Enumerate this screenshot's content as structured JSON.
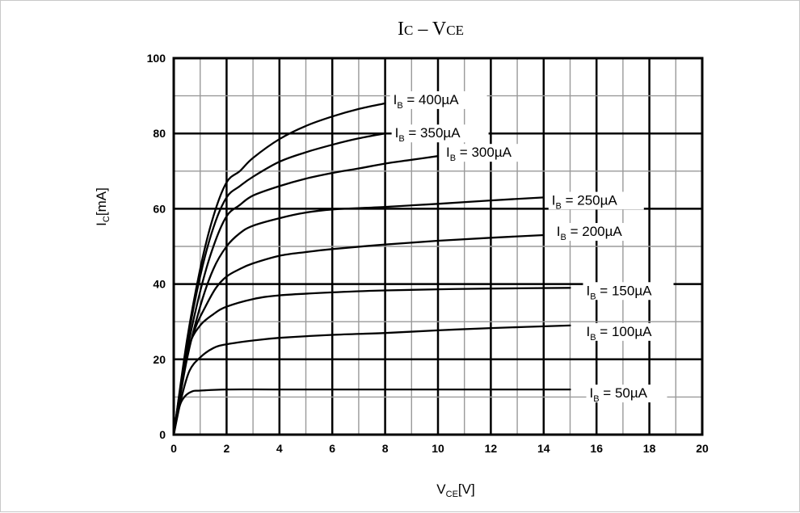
{
  "chart_data": {
    "type": "line",
    "title": {
      "main1": "I",
      "sub1": "C",
      "sep": " – ",
      "main2": "V",
      "sub2": "CE"
    },
    "xlabel": {
      "main": "V",
      "sub": "CE",
      "unit": "[V]"
    },
    "ylabel": {
      "main": "I",
      "sub": "C",
      "unit": "[mA]"
    },
    "xlim": [
      0,
      20
    ],
    "ylim": [
      0,
      100
    ],
    "x_ticks": [
      0,
      2,
      4,
      6,
      8,
      10,
      12,
      14,
      16,
      18,
      20
    ],
    "y_ticks": [
      0,
      20,
      40,
      60,
      80,
      100
    ],
    "x_tick_labels": [
      "0",
      "2",
      "4",
      "6",
      "8",
      "10",
      "12",
      "14",
      "16",
      "18",
      "20"
    ],
    "y_tick_labels": [
      "0",
      "20",
      "40",
      "60",
      "80",
      "100"
    ],
    "grid": true,
    "series": [
      {
        "name": "IB = 50µA",
        "label": {
          "main": "I",
          "sub": "B",
          "rest": " = 50µA"
        },
        "points": [
          [
            0,
            0
          ],
          [
            0.2,
            7
          ],
          [
            0.4,
            10
          ],
          [
            0.7,
            11.5
          ],
          [
            1,
            11.7
          ],
          [
            2,
            12
          ],
          [
            4,
            12
          ],
          [
            8,
            12
          ],
          [
            12,
            12
          ],
          [
            15,
            12
          ]
        ]
      },
      {
        "name": "IB = 100µA",
        "label": {
          "main": "I",
          "sub": "B",
          "rest": " = 100µA"
        },
        "points": [
          [
            0,
            0
          ],
          [
            0.3,
            10
          ],
          [
            0.6,
            17
          ],
          [
            1,
            20.5
          ],
          [
            1.5,
            23
          ],
          [
            2,
            24
          ],
          [
            3,
            25
          ],
          [
            4,
            25.7
          ],
          [
            6,
            26.5
          ],
          [
            8,
            27
          ],
          [
            10,
            27.7
          ],
          [
            12,
            28.3
          ],
          [
            15,
            29
          ]
        ]
      },
      {
        "name": "IB = 150µA",
        "label": {
          "main": "I",
          "sub": "B",
          "rest": " = 150µA"
        },
        "points": [
          [
            0,
            0
          ],
          [
            0.3,
            14
          ],
          [
            0.6,
            24
          ],
          [
            1,
            29
          ],
          [
            1.5,
            32
          ],
          [
            2,
            34
          ],
          [
            3,
            36
          ],
          [
            4,
            37
          ],
          [
            6,
            37.8
          ],
          [
            8,
            38.3
          ],
          [
            10,
            38.6
          ],
          [
            12,
            38.8
          ],
          [
            15,
            39
          ]
        ]
      },
      {
        "name": "IB = 200µA",
        "label": {
          "main": "I",
          "sub": "B",
          "rest": " = 200µA"
        },
        "points": [
          [
            0,
            0
          ],
          [
            0.4,
            18
          ],
          [
            0.8,
            28
          ],
          [
            1.2,
            34
          ],
          [
            1.6,
            39
          ],
          [
            2,
            42
          ],
          [
            2.5,
            44
          ],
          [
            3,
            45.5
          ],
          [
            4,
            47.5
          ],
          [
            5,
            48.5
          ],
          [
            6,
            49.3
          ],
          [
            8,
            50.5
          ],
          [
            10,
            51.5
          ],
          [
            12,
            52.3
          ],
          [
            14,
            53
          ]
        ]
      },
      {
        "name": "IB = 250µA",
        "label": {
          "main": "I",
          "sub": "B",
          "rest": " = 250µA"
        },
        "points": [
          [
            0,
            0
          ],
          [
            0.5,
            20
          ],
          [
            1,
            34
          ],
          [
            1.5,
            44
          ],
          [
            2,
            50
          ],
          [
            2.5,
            53.5
          ],
          [
            3,
            55.5
          ],
          [
            4,
            57.5
          ],
          [
            5,
            59
          ],
          [
            6,
            59.8
          ],
          [
            8,
            60.5
          ],
          [
            10,
            61.3
          ],
          [
            12,
            62.2
          ],
          [
            14,
            63
          ]
        ]
      },
      {
        "name": "IB = 300µA",
        "label": {
          "main": "I",
          "sub": "B",
          "rest": " = 300µA"
        },
        "points": [
          [
            0,
            0
          ],
          [
            0.5,
            22
          ],
          [
            1,
            38
          ],
          [
            1.5,
            50
          ],
          [
            2,
            58
          ],
          [
            2.5,
            61
          ],
          [
            3,
            63.5
          ],
          [
            4,
            66
          ],
          [
            5,
            68
          ],
          [
            6,
            69.5
          ],
          [
            7,
            70.7
          ],
          [
            8,
            72
          ],
          [
            9,
            73
          ],
          [
            10,
            74
          ]
        ]
      },
      {
        "name": "IB = 350µA",
        "label": {
          "main": "I",
          "sub": "B",
          "rest": " = 350µA"
        },
        "points": [
          [
            0,
            0
          ],
          [
            0.5,
            24
          ],
          [
            1,
            42
          ],
          [
            1.5,
            55
          ],
          [
            2,
            63
          ],
          [
            2.5,
            66
          ],
          [
            3,
            68.5
          ],
          [
            4,
            72.5
          ],
          [
            5,
            75
          ],
          [
            6,
            77
          ],
          [
            7,
            78.7
          ],
          [
            8,
            80
          ]
        ]
      },
      {
        "name": "IB = 400µA",
        "label": {
          "main": "I",
          "sub": "B",
          "rest": " = 400µA"
        },
        "points": [
          [
            0,
            0
          ],
          [
            0.5,
            25
          ],
          [
            1,
            44
          ],
          [
            1.5,
            58
          ],
          [
            2,
            67
          ],
          [
            2.5,
            70
          ],
          [
            3,
            73.5
          ],
          [
            4,
            78.5
          ],
          [
            5,
            82
          ],
          [
            6,
            84.5
          ],
          [
            7,
            86.5
          ],
          [
            8,
            88
          ]
        ]
      }
    ]
  }
}
